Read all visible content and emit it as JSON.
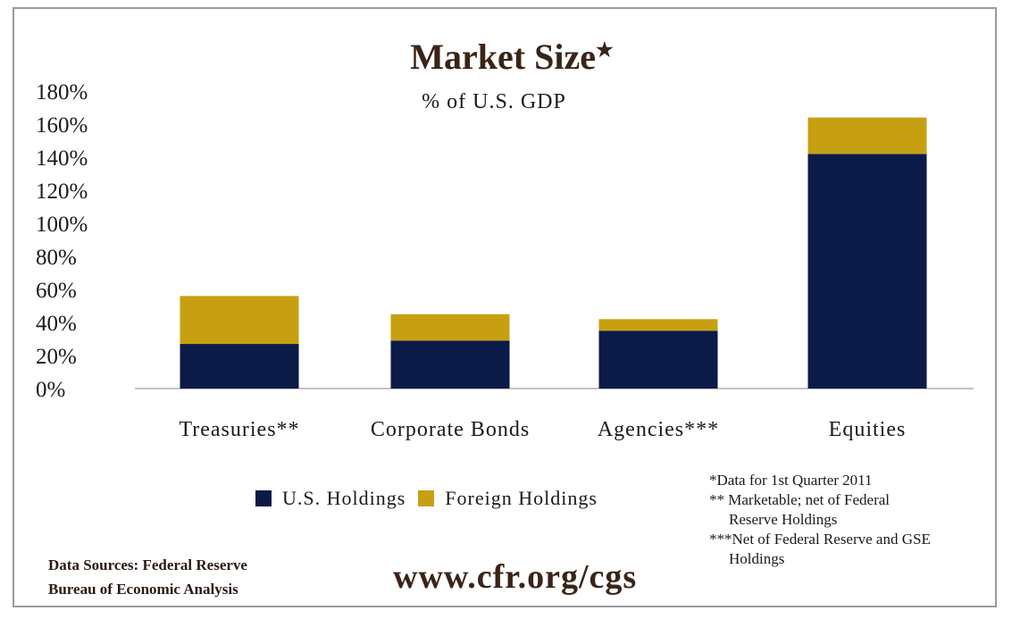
{
  "colors": {
    "us": "#0b1a47",
    "foreign": "#c7a012",
    "title": "#3a2418",
    "axis": "#b0b0b0"
  },
  "chart_data": {
    "type": "bar",
    "stacked": true,
    "title": "Market Size",
    "title_mark": "★",
    "subtitle": "% of U.S. GDP",
    "categories": [
      "Treasuries**",
      "Corporate Bonds",
      "Agencies***",
      "Equities"
    ],
    "series": [
      {
        "name": "U.S. Holdings",
        "values": [
          27,
          29,
          35,
          142
        ]
      },
      {
        "name": "Foreign Holdings",
        "values": [
          29,
          16,
          7,
          22
        ]
      }
    ],
    "ylim": [
      0,
      180
    ],
    "yticks": [
      "0%",
      "20%",
      "40%",
      "60%",
      "80%",
      "100%",
      "120%",
      "140%",
      "160%",
      "180%"
    ],
    "ytick_values": [
      0,
      20,
      40,
      60,
      80,
      100,
      120,
      140,
      160,
      180
    ],
    "grid": false,
    "legend": "bottom"
  },
  "footnotes": {
    "note1": "*Data for 1st Quarter 2011",
    "note2a": "** Marketable; net of Federal",
    "note2b": "Reserve Holdings",
    "note3a": "***Net of Federal Reserve and GSE",
    "note3b": "Holdings"
  },
  "sources": {
    "line1": "Data Sources: Federal Reserve",
    "line2": "Bureau of Economic Analysis"
  },
  "website": "www.cfr.org/cgs"
}
